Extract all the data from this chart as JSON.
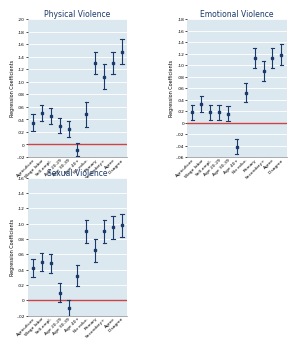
{
  "subplots": [
    {
      "title": "Physical Violence",
      "ylim": [
        -0.02,
        0.2
      ],
      "yticks": [
        -0.02,
        0.0,
        0.02,
        0.04,
        0.06,
        0.08,
        0.1,
        0.12,
        0.14,
        0.16,
        0.18,
        0.2
      ],
      "ytick_labels": [
        "-.02",
        "0",
        ".02",
        ".04",
        ".06",
        ".08",
        ".10",
        ".12",
        ".14",
        ".16",
        ".18",
        ".20"
      ],
      "categories": [
        "Agriculture",
        "Wage labor",
        "Self-empl.",
        "Age 20-29",
        "Age 30-39",
        "Age 40+",
        "No educ.",
        "Primary",
        "Secondary+",
        "Agree",
        "Disagree"
      ],
      "values": [
        0.035,
        0.05,
        0.045,
        0.03,
        0.025,
        -0.008,
        0.048,
        0.13,
        0.108,
        0.13,
        0.148
      ],
      "ci_low": [
        0.022,
        0.037,
        0.032,
        0.018,
        0.012,
        -0.018,
        0.028,
        0.112,
        0.088,
        0.112,
        0.128
      ],
      "ci_high": [
        0.048,
        0.063,
        0.058,
        0.042,
        0.038,
        0.002,
        0.068,
        0.148,
        0.128,
        0.148,
        0.168
      ]
    },
    {
      "title": "Emotional Violence",
      "ylim": [
        -0.06,
        0.18
      ],
      "yticks": [
        -0.06,
        -0.04,
        -0.02,
        0.0,
        0.02,
        0.04,
        0.06,
        0.08,
        0.1,
        0.12,
        0.14,
        0.16,
        0.18
      ],
      "ytick_labels": [
        "-.06",
        "-.04",
        "-.02",
        "0",
        ".02",
        ".04",
        ".06",
        ".08",
        ".10",
        ".12",
        ".14",
        ".16",
        ".18"
      ],
      "categories": [
        "Agriculture",
        "Wage labor",
        "Self-empl.",
        "Age 20-29",
        "Age 30-39",
        "Age 40+",
        "No educ.",
        "Primary",
        "Secondary+",
        "Agree",
        "Disagree"
      ],
      "values": [
        0.018,
        0.032,
        0.018,
        0.018,
        0.015,
        -0.042,
        0.052,
        0.112,
        0.09,
        0.112,
        0.118
      ],
      "ci_low": [
        0.005,
        0.018,
        0.005,
        0.005,
        0.002,
        -0.055,
        0.035,
        0.095,
        0.072,
        0.095,
        0.1
      ],
      "ci_high": [
        0.031,
        0.046,
        0.031,
        0.031,
        0.028,
        -0.029,
        0.069,
        0.129,
        0.108,
        0.129,
        0.136
      ]
    },
    {
      "title": "Sexual Violence",
      "ylim": [
        -0.02,
        0.16
      ],
      "yticks": [
        -0.02,
        0.0,
        0.02,
        0.04,
        0.06,
        0.08,
        0.1,
        0.12,
        0.14,
        0.16
      ],
      "ytick_labels": [
        "-.02",
        "0",
        ".02",
        ".04",
        ".06",
        ".08",
        ".10",
        ".12",
        ".14",
        ".16"
      ],
      "categories": [
        "Agriculture",
        "Wage labor",
        "Self-empl.",
        "Age 20-29",
        "Age 30-39",
        "Age 40+",
        "No educ.",
        "Primary",
        "Secondary+",
        "Agree",
        "Disagree"
      ],
      "values": [
        0.042,
        0.05,
        0.048,
        0.01,
        -0.01,
        0.032,
        0.09,
        0.065,
        0.09,
        0.095,
        0.098
      ],
      "ci_low": [
        0.03,
        0.038,
        0.036,
        -0.002,
        -0.02,
        0.018,
        0.075,
        0.05,
        0.075,
        0.08,
        0.083
      ],
      "ci_high": [
        0.054,
        0.062,
        0.06,
        0.022,
        0.0,
        0.046,
        0.105,
        0.08,
        0.105,
        0.11,
        0.113
      ]
    }
  ],
  "point_color": "#1a3a6b",
  "ci_color": "#1a3a6b",
  "line_color": "#cc4444",
  "bg_color": "#dce8f0",
  "ylabel": "Regression Coefficients",
  "title_fontsize": 5.5,
  "label_fontsize": 3.2,
  "tick_fontsize": 3.2,
  "ylabel_fontsize": 3.5
}
